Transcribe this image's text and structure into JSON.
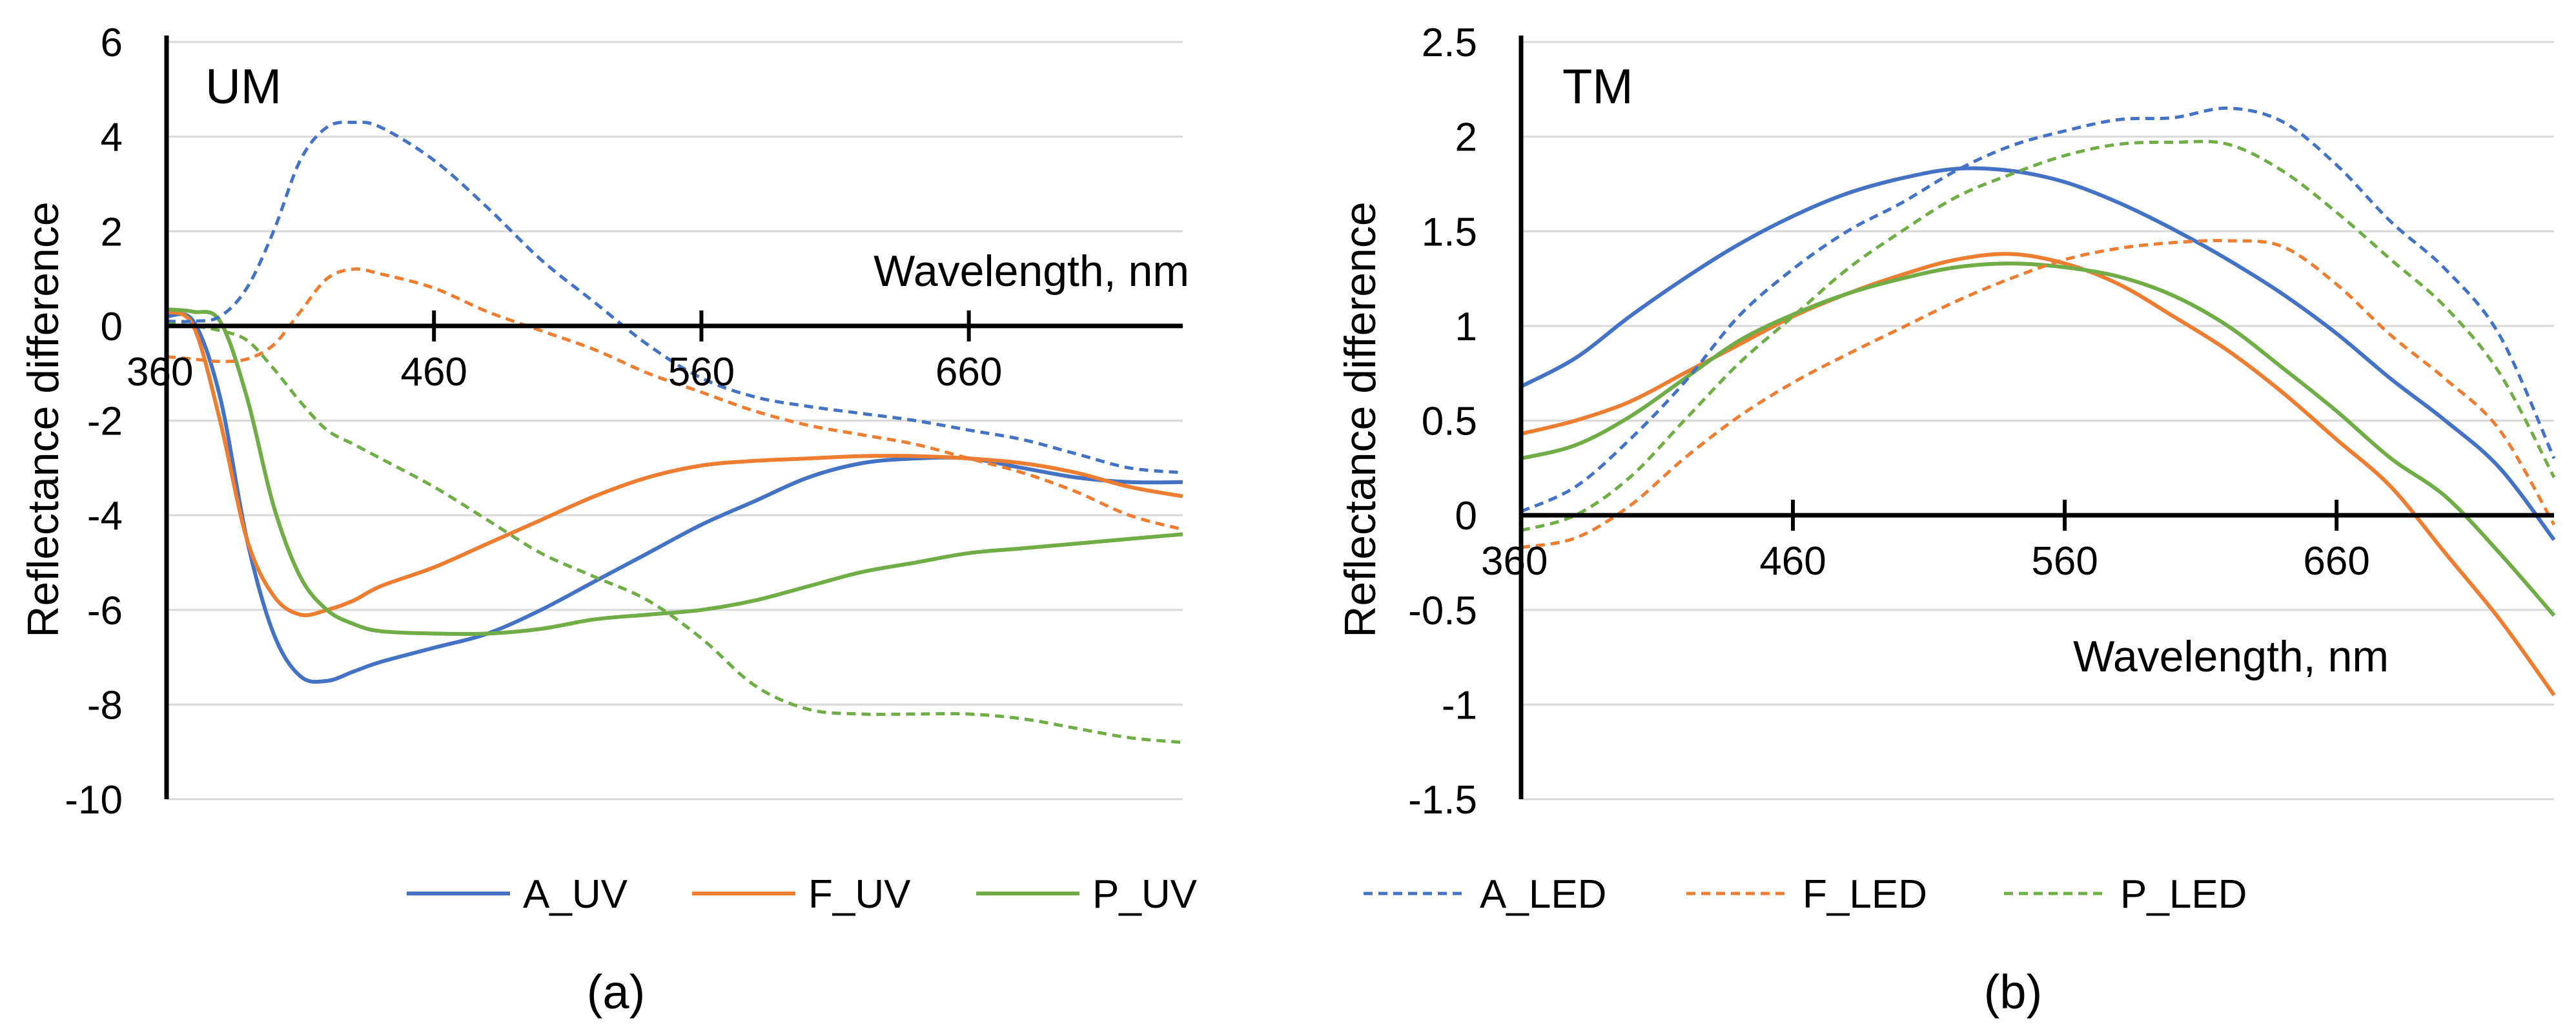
{
  "figure": {
    "legend": [
      {
        "name": "A_UV",
        "color": "#4472C4",
        "dashed": false
      },
      {
        "name": "F_UV",
        "color": "#ED7D31",
        "dashed": false
      },
      {
        "name": "P_UV",
        "color": "#70AD47",
        "dashed": false
      },
      {
        "name": "A_LED",
        "color": "#4472C4",
        "dashed": true
      },
      {
        "name": "F_LED",
        "color": "#ED7D31",
        "dashed": true
      },
      {
        "name": "P_LED",
        "color": "#70AD47",
        "dashed": true
      }
    ]
  },
  "chart_data": [
    {
      "type": "line",
      "id": "a",
      "panel_label": "(a)",
      "title": "UM",
      "xlabel": "Wavelength, nm",
      "ylabel": "Reflectance difference",
      "xlim": [
        360,
        740
      ],
      "ylim": [
        -10,
        6
      ],
      "xticks": [
        360,
        460,
        560,
        660
      ],
      "xtick_labels": [
        "360",
        "460",
        "560",
        "660"
      ],
      "yticks": [
        6,
        4,
        2,
        0,
        -2,
        -4,
        -6,
        -8,
        -10
      ],
      "ytick_labels": [
        "6",
        "4",
        "2",
        "0",
        "-2",
        "-4",
        "-6",
        "-8",
        "-10"
      ],
      "grid": true,
      "series": [
        {
          "name": "A_UV",
          "color": "#4472C4",
          "dashed": false,
          "x": [
            360,
            370,
            380,
            390,
            400,
            410,
            420,
            430,
            440,
            460,
            480,
            500,
            520,
            540,
            560,
            580,
            600,
            620,
            640,
            660,
            680,
            700,
            720,
            740
          ],
          "y": [
            0.2,
            0.1,
            -1.5,
            -4.5,
            -6.5,
            -7.4,
            -7.5,
            -7.3,
            -7.1,
            -6.8,
            -6.5,
            -6.0,
            -5.4,
            -4.8,
            -4.2,
            -3.7,
            -3.2,
            -2.9,
            -2.8,
            -2.8,
            -3.0,
            -3.2,
            -3.3,
            -3.3
          ]
        },
        {
          "name": "F_UV",
          "color": "#ED7D31",
          "dashed": false,
          "x": [
            360,
            370,
            380,
            390,
            400,
            410,
            420,
            430,
            440,
            460,
            480,
            500,
            520,
            540,
            560,
            580,
            600,
            620,
            640,
            660,
            680,
            700,
            720,
            740
          ],
          "y": [
            0.3,
            0.0,
            -2.0,
            -4.5,
            -5.7,
            -6.1,
            -6.0,
            -5.8,
            -5.5,
            -5.1,
            -4.6,
            -4.1,
            -3.6,
            -3.2,
            -2.95,
            -2.85,
            -2.8,
            -2.75,
            -2.75,
            -2.8,
            -2.9,
            -3.1,
            -3.4,
            -3.6
          ]
        },
        {
          "name": "P_UV",
          "color": "#70AD47",
          "dashed": false,
          "x": [
            360,
            370,
            380,
            390,
            400,
            410,
            420,
            430,
            440,
            460,
            480,
            500,
            520,
            540,
            560,
            580,
            600,
            620,
            640,
            660,
            680,
            700,
            720,
            740
          ],
          "y": [
            0.35,
            0.3,
            0.1,
            -1.5,
            -3.8,
            -5.3,
            -6.0,
            -6.3,
            -6.45,
            -6.5,
            -6.5,
            -6.4,
            -6.2,
            -6.1,
            -6.0,
            -5.8,
            -5.5,
            -5.2,
            -5.0,
            -4.8,
            -4.7,
            -4.6,
            -4.5,
            -4.4
          ]
        },
        {
          "name": "A_LED",
          "color": "#4472C4",
          "dashed": true,
          "x": [
            360,
            370,
            380,
            390,
            400,
            410,
            420,
            430,
            440,
            460,
            480,
            500,
            520,
            540,
            560,
            580,
            600,
            620,
            640,
            660,
            680,
            700,
            720,
            740
          ],
          "y": [
            0.1,
            0.1,
            0.2,
            0.8,
            2.0,
            3.5,
            4.2,
            4.3,
            4.2,
            3.5,
            2.5,
            1.4,
            0.5,
            -0.4,
            -1.1,
            -1.5,
            -1.7,
            -1.85,
            -2.0,
            -2.2,
            -2.4,
            -2.7,
            -3.0,
            -3.1
          ]
        },
        {
          "name": "F_LED",
          "color": "#ED7D31",
          "dashed": true,
          "x": [
            360,
            370,
            380,
            390,
            400,
            410,
            420,
            430,
            440,
            460,
            480,
            500,
            520,
            540,
            560,
            580,
            600,
            620,
            640,
            660,
            680,
            700,
            720,
            740
          ],
          "y": [
            -0.65,
            -0.7,
            -0.75,
            -0.7,
            -0.4,
            0.3,
            1.0,
            1.2,
            1.1,
            0.8,
            0.3,
            -0.1,
            -0.5,
            -1.0,
            -1.4,
            -1.8,
            -2.1,
            -2.3,
            -2.5,
            -2.8,
            -3.1,
            -3.5,
            -4.0,
            -4.3
          ]
        },
        {
          "name": "P_LED",
          "color": "#70AD47",
          "dashed": true,
          "x": [
            360,
            370,
            380,
            390,
            400,
            410,
            420,
            430,
            440,
            460,
            480,
            500,
            520,
            540,
            560,
            580,
            600,
            620,
            640,
            660,
            680,
            700,
            720,
            740
          ],
          "y": [
            0.05,
            0.0,
            -0.1,
            -0.3,
            -0.9,
            -1.6,
            -2.2,
            -2.5,
            -2.8,
            -3.4,
            -4.1,
            -4.8,
            -5.3,
            -5.8,
            -6.6,
            -7.6,
            -8.1,
            -8.2,
            -8.2,
            -8.2,
            -8.3,
            -8.5,
            -8.7,
            -8.8
          ]
        }
      ]
    },
    {
      "type": "line",
      "id": "b",
      "panel_label": "(b)",
      "title": "TM",
      "xlabel": "Wavelength, nm",
      "ylabel": "Reflectance difference",
      "xlim": [
        360,
        740
      ],
      "ylim": [
        -1.5,
        2.5
      ],
      "xticks": [
        360,
        460,
        560,
        660
      ],
      "xtick_labels": [
        "360",
        "460",
        "560",
        "660"
      ],
      "yticks": [
        2.5,
        2,
        1.5,
        1,
        0.5,
        0,
        -0.5,
        -1,
        -1.5
      ],
      "ytick_labels": [
        "2.5",
        "2",
        "1.5",
        "1",
        "0.5",
        "0",
        "-0.5",
        "-1",
        "-1.5"
      ],
      "grid": true,
      "series": [
        {
          "name": "A_UV",
          "color": "#4472C4",
          "dashed": false,
          "x": [
            360,
            380,
            400,
            420,
            440,
            460,
            480,
            500,
            520,
            540,
            560,
            580,
            600,
            620,
            640,
            660,
            680,
            700,
            720,
            740
          ],
          "y": [
            0.68,
            0.83,
            1.05,
            1.25,
            1.43,
            1.58,
            1.7,
            1.78,
            1.83,
            1.82,
            1.76,
            1.65,
            1.51,
            1.35,
            1.17,
            0.96,
            0.72,
            0.5,
            0.25,
            -0.13
          ]
        },
        {
          "name": "F_UV",
          "color": "#ED7D31",
          "dashed": false,
          "x": [
            360,
            380,
            400,
            420,
            440,
            460,
            480,
            500,
            520,
            540,
            560,
            580,
            600,
            620,
            640,
            660,
            680,
            700,
            720,
            740
          ],
          "y": [
            0.43,
            0.5,
            0.6,
            0.75,
            0.9,
            1.05,
            1.17,
            1.27,
            1.35,
            1.38,
            1.33,
            1.22,
            1.05,
            0.87,
            0.65,
            0.4,
            0.15,
            -0.2,
            -0.55,
            -0.95
          ]
        },
        {
          "name": "P_UV",
          "color": "#70AD47",
          "dashed": false,
          "x": [
            360,
            380,
            400,
            420,
            440,
            460,
            480,
            500,
            520,
            540,
            560,
            580,
            600,
            620,
            640,
            660,
            680,
            700,
            720,
            740
          ],
          "y": [
            0.3,
            0.37,
            0.52,
            0.72,
            0.92,
            1.06,
            1.17,
            1.25,
            1.31,
            1.33,
            1.31,
            1.26,
            1.16,
            1.0,
            0.78,
            0.55,
            0.3,
            0.1,
            -0.2,
            -0.53
          ]
        },
        {
          "name": "A_LED",
          "color": "#4472C4",
          "dashed": true,
          "x": [
            360,
            380,
            400,
            420,
            440,
            460,
            480,
            500,
            520,
            540,
            560,
            580,
            600,
            620,
            640,
            660,
            680,
            700,
            720,
            740
          ],
          "y": [
            0.02,
            0.15,
            0.4,
            0.7,
            1.05,
            1.3,
            1.5,
            1.65,
            1.82,
            1.95,
            2.03,
            2.09,
            2.1,
            2.15,
            2.08,
            1.85,
            1.55,
            1.3,
            0.95,
            0.3
          ]
        },
        {
          "name": "F_LED",
          "color": "#ED7D31",
          "dashed": true,
          "x": [
            360,
            380,
            400,
            420,
            440,
            460,
            480,
            500,
            520,
            540,
            560,
            580,
            600,
            620,
            640,
            660,
            680,
            700,
            720,
            740
          ],
          "y": [
            -0.17,
            -0.12,
            0.05,
            0.3,
            0.52,
            0.7,
            0.85,
            0.99,
            1.13,
            1.25,
            1.35,
            1.41,
            1.44,
            1.45,
            1.42,
            1.22,
            0.95,
            0.72,
            0.45,
            -0.05
          ]
        },
        {
          "name": "P_LED",
          "color": "#70AD47",
          "dashed": true,
          "x": [
            360,
            380,
            400,
            420,
            440,
            460,
            480,
            500,
            520,
            540,
            560,
            580,
            600,
            620,
            640,
            660,
            680,
            700,
            720,
            740
          ],
          "y": [
            -0.08,
            0.0,
            0.2,
            0.5,
            0.8,
            1.05,
            1.3,
            1.5,
            1.68,
            1.8,
            1.9,
            1.96,
            1.97,
            1.96,
            1.82,
            1.6,
            1.35,
            1.1,
            0.75,
            0.2
          ]
        }
      ]
    }
  ]
}
